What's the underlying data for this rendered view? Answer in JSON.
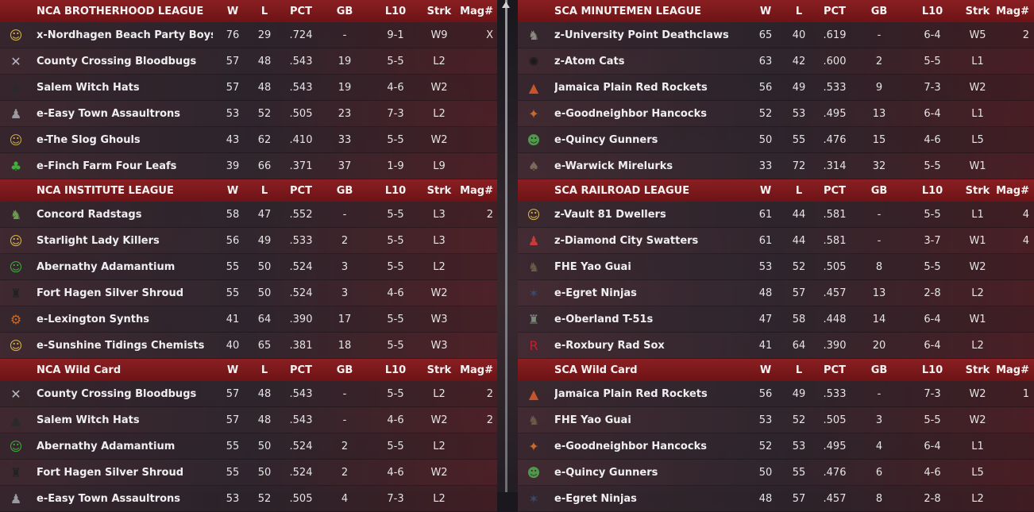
{
  "columns": {
    "w": "W",
    "l": "L",
    "pct": "PCT",
    "gb": "GB",
    "l10": "L10",
    "strk": "Strk",
    "mag": "Mag#"
  },
  "left": [
    {
      "title": "NCA BROTHERHOOD LEAGUE",
      "rows": [
        {
          "icon": "vault-boy-icon",
          "glyph": "☺",
          "color": "#d9b648",
          "name": "x-Nordhagen Beach Party Boys",
          "w": "76",
          "l": "29",
          "pct": ".724",
          "gb": "-",
          "l10": "9-1",
          "strk": "W9",
          "mag": "X"
        },
        {
          "icon": "bloodbug-icon",
          "glyph": "✕",
          "color": "#b9b9c4",
          "name": "County Crossing Bloodbugs",
          "w": "57",
          "l": "48",
          "pct": ".543",
          "gb": "19",
          "l10": "5-5",
          "strk": "L2",
          "mag": ""
        },
        {
          "icon": "witch-hat-icon",
          "glyph": "▲",
          "color": "#2a2a2a",
          "name": "Salem Witch Hats",
          "w": "57",
          "l": "48",
          "pct": ".543",
          "gb": "19",
          "l10": "4-6",
          "strk": "W2",
          "mag": ""
        },
        {
          "icon": "assaultron-icon",
          "glyph": "♟",
          "color": "#9a9aa0",
          "name": "e-Easy Town Assaultrons",
          "w": "53",
          "l": "52",
          "pct": ".505",
          "gb": "23",
          "l10": "7-3",
          "strk": "L2",
          "mag": ""
        },
        {
          "icon": "ghoul-icon",
          "glyph": "☺",
          "color": "#c8a848",
          "name": "e-The Slog Ghouls",
          "w": "43",
          "l": "62",
          "pct": ".410",
          "gb": "33",
          "l10": "5-5",
          "strk": "W2",
          "mag": ""
        },
        {
          "icon": "four-leaf-icon",
          "glyph": "♣",
          "color": "#3fae3a",
          "name": "e-Finch Farm Four Leafs",
          "w": "39",
          "l": "66",
          "pct": ".371",
          "gb": "37",
          "l10": "1-9",
          "strk": "L9",
          "mag": ""
        }
      ]
    },
    {
      "title": "NCA INSTITUTE LEAGUE",
      "rows": [
        {
          "icon": "radstag-icon",
          "glyph": "♞",
          "color": "#6e9a52",
          "name": "Concord Radstags",
          "w": "58",
          "l": "47",
          "pct": ".552",
          "gb": "-",
          "l10": "5-5",
          "strk": "L3",
          "mag": "2"
        },
        {
          "icon": "lady-killer-icon",
          "glyph": "☺",
          "color": "#d9b648",
          "name": "Starlight Lady Killers",
          "w": "56",
          "l": "49",
          "pct": ".533",
          "gb": "2",
          "l10": "5-5",
          "strk": "L3",
          "mag": ""
        },
        {
          "icon": "adamantium-icon",
          "glyph": "☺",
          "color": "#3fae3a",
          "name": "Abernathy Adamantium",
          "w": "55",
          "l": "50",
          "pct": ".524",
          "gb": "3",
          "l10": "5-5",
          "strk": "L2",
          "mag": ""
        },
        {
          "icon": "silver-shroud-icon",
          "glyph": "♜",
          "color": "#222",
          "name": "Fort Hagen Silver Shroud",
          "w": "55",
          "l": "50",
          "pct": ".524",
          "gb": "3",
          "l10": "4-6",
          "strk": "W2",
          "mag": ""
        },
        {
          "icon": "synth-icon",
          "glyph": "⚙",
          "color": "#c86a2a",
          "name": "e-Lexington Synths",
          "w": "41",
          "l": "64",
          "pct": ".390",
          "gb": "17",
          "l10": "5-5",
          "strk": "W3",
          "mag": ""
        },
        {
          "icon": "chemist-icon",
          "glyph": "☺",
          "color": "#d9b648",
          "name": "e-Sunshine Tidings Chemists",
          "w": "40",
          "l": "65",
          "pct": ".381",
          "gb": "18",
          "l10": "5-5",
          "strk": "W3",
          "mag": ""
        }
      ]
    },
    {
      "title": "NCA  Wild Card",
      "rows": [
        {
          "icon": "bloodbug-icon",
          "glyph": "✕",
          "color": "#b9b9c4",
          "name": "County Crossing Bloodbugs",
          "w": "57",
          "l": "48",
          "pct": ".543",
          "gb": "-",
          "l10": "5-5",
          "strk": "L2",
          "mag": "2"
        },
        {
          "icon": "witch-hat-icon",
          "glyph": "▲",
          "color": "#2a2a2a",
          "name": "Salem Witch Hats",
          "w": "57",
          "l": "48",
          "pct": ".543",
          "gb": "-",
          "l10": "4-6",
          "strk": "W2",
          "mag": "2"
        },
        {
          "icon": "adamantium-icon",
          "glyph": "☺",
          "color": "#3fae3a",
          "name": "Abernathy Adamantium",
          "w": "55",
          "l": "50",
          "pct": ".524",
          "gb": "2",
          "l10": "5-5",
          "strk": "L2",
          "mag": ""
        },
        {
          "icon": "silver-shroud-icon",
          "glyph": "♜",
          "color": "#222",
          "name": "Fort Hagen Silver Shroud",
          "w": "55",
          "l": "50",
          "pct": ".524",
          "gb": "2",
          "l10": "4-6",
          "strk": "W2",
          "mag": ""
        },
        {
          "icon": "assaultron-icon",
          "glyph": "♟",
          "color": "#9a9aa0",
          "name": "e-Easy Town Assaultrons",
          "w": "53",
          "l": "52",
          "pct": ".505",
          "gb": "4",
          "l10": "7-3",
          "strk": "L2",
          "mag": ""
        }
      ]
    }
  ],
  "right": [
    {
      "title": "SCA MINUTEMEN LEAGUE",
      "rows": [
        {
          "icon": "deathclaw-icon",
          "glyph": "♞",
          "color": "#8a8a82",
          "name": "z-University Point Deathclaws",
          "w": "65",
          "l": "40",
          "pct": ".619",
          "gb": "-",
          "l10": "6-4",
          "strk": "W5",
          "mag": "2"
        },
        {
          "icon": "atom-cat-icon",
          "glyph": "✺",
          "color": "#1a1a1a",
          "name": "z-Atom Cats",
          "w": "63",
          "l": "42",
          "pct": ".600",
          "gb": "2",
          "l10": "5-5",
          "strk": "L1",
          "mag": ""
        },
        {
          "icon": "red-rocket-icon",
          "glyph": "▲",
          "color": "#c8552a",
          "name": "Jamaica Plain Red Rockets",
          "w": "56",
          "l": "49",
          "pct": ".533",
          "gb": "9",
          "l10": "7-3",
          "strk": "W2",
          "mag": ""
        },
        {
          "icon": "hancock-icon",
          "glyph": "✦",
          "color": "#c86a2a",
          "name": "e-Goodneighbor Hancocks",
          "w": "52",
          "l": "53",
          "pct": ".495",
          "gb": "13",
          "l10": "6-4",
          "strk": "L1",
          "mag": ""
        },
        {
          "icon": "gunner-icon",
          "glyph": "☻",
          "color": "#4f9a4a",
          "name": "e-Quincy Gunners",
          "w": "50",
          "l": "55",
          "pct": ".476",
          "gb": "15",
          "l10": "4-6",
          "strk": "L5",
          "mag": ""
        },
        {
          "icon": "mirelurk-icon",
          "glyph": "♠",
          "color": "#7a6a5a",
          "name": "e-Warwick Mirelurks",
          "w": "33",
          "l": "72",
          "pct": ".314",
          "gb": "32",
          "l10": "5-5",
          "strk": "W1",
          "mag": ""
        }
      ]
    },
    {
      "title": "SCA RAILROAD LEAGUE",
      "rows": [
        {
          "icon": "vault-dweller-icon",
          "glyph": "☺",
          "color": "#d9b648",
          "name": "z-Vault 81 Dwellers",
          "w": "61",
          "l": "44",
          "pct": ".581",
          "gb": "-",
          "l10": "5-5",
          "strk": "L1",
          "mag": "4"
        },
        {
          "icon": "swatter-icon",
          "glyph": "♟",
          "color": "#c83a3a",
          "name": "z-Diamond City Swatters",
          "w": "61",
          "l": "44",
          "pct": ".581",
          "gb": "-",
          "l10": "3-7",
          "strk": "W1",
          "mag": "4"
        },
        {
          "icon": "yao-guai-icon",
          "glyph": "♞",
          "color": "#6a5a48",
          "name": "FHE Yao Guai",
          "w": "53",
          "l": "52",
          "pct": ".505",
          "gb": "8",
          "l10": "5-5",
          "strk": "W2",
          "mag": ""
        },
        {
          "icon": "ninja-icon",
          "glyph": "✶",
          "color": "#3a4a6a",
          "name": "e-Egret Ninjas",
          "w": "48",
          "l": "57",
          "pct": ".457",
          "gb": "13",
          "l10": "2-8",
          "strk": "L2",
          "mag": ""
        },
        {
          "icon": "power-armor-icon",
          "glyph": "♜",
          "color": "#7a8a7a",
          "name": "e-Oberland T-51s",
          "w": "47",
          "l": "58",
          "pct": ".448",
          "gb": "14",
          "l10": "6-4",
          "strk": "W1",
          "mag": ""
        },
        {
          "icon": "rad-sox-icon",
          "glyph": "R",
          "color": "#c81e2a",
          "name": "e-Roxbury Rad Sox",
          "w": "41",
          "l": "64",
          "pct": ".390",
          "gb": "20",
          "l10": "6-4",
          "strk": "L2",
          "mag": ""
        }
      ]
    },
    {
      "title": "SCA  Wild Card",
      "rows": [
        {
          "icon": "red-rocket-icon",
          "glyph": "▲",
          "color": "#c8552a",
          "name": "Jamaica Plain Red Rockets",
          "w": "56",
          "l": "49",
          "pct": ".533",
          "gb": "-",
          "l10": "7-3",
          "strk": "W2",
          "mag": "1"
        },
        {
          "icon": "yao-guai-icon",
          "glyph": "♞",
          "color": "#6a5a48",
          "name": "FHE Yao Guai",
          "w": "53",
          "l": "52",
          "pct": ".505",
          "gb": "3",
          "l10": "5-5",
          "strk": "W2",
          "mag": ""
        },
        {
          "icon": "hancock-icon",
          "glyph": "✦",
          "color": "#c86a2a",
          "name": "e-Goodneighbor Hancocks",
          "w": "52",
          "l": "53",
          "pct": ".495",
          "gb": "4",
          "l10": "6-4",
          "strk": "L1",
          "mag": ""
        },
        {
          "icon": "gunner-icon",
          "glyph": "☻",
          "color": "#4f9a4a",
          "name": "e-Quincy Gunners",
          "w": "50",
          "l": "55",
          "pct": ".476",
          "gb": "6",
          "l10": "4-6",
          "strk": "L5",
          "mag": ""
        },
        {
          "icon": "ninja-icon",
          "glyph": "✶",
          "color": "#3a4a6a",
          "name": "e-Egret Ninjas",
          "w": "48",
          "l": "57",
          "pct": ".457",
          "gb": "8",
          "l10": "2-8",
          "strk": "L2",
          "mag": ""
        }
      ]
    }
  ]
}
